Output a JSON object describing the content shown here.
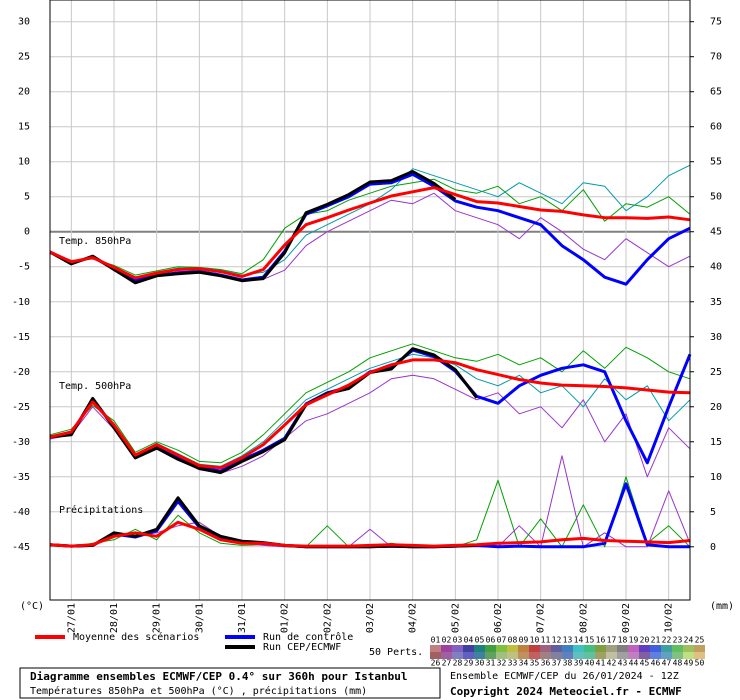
{
  "chart_data": {
    "type": "line",
    "title": "Diagramme ensembles ECMWF/CEP 0.4° sur 360h pour Istanbul",
    "subtitle": "Températures 850hPa et 500hPa (°C) , précipitations (mm)",
    "run_info": "Ensemble ECMWF/CEP du 26/01/2024 - 12Z",
    "copyright": "Copyright 2024 Meteociel.fr - ECMWF",
    "y_label": "(°C)",
    "y2_label": "(mm)",
    "annotations": [
      "Temp. 850hPa",
      "Temp. 500hPa",
      "Précipitations"
    ],
    "perturbations_label": "50 Perts.",
    "perturbation_keys": [
      "01",
      "02",
      "03",
      "04",
      "05",
      "06",
      "07",
      "08",
      "09",
      "10",
      "11",
      "12",
      "13",
      "14",
      "15",
      "16",
      "17",
      "18",
      "19",
      "20",
      "21",
      "22",
      "23",
      "24",
      "25",
      "26",
      "27",
      "28",
      "29",
      "30",
      "31",
      "32",
      "33",
      "34",
      "35",
      "36",
      "37",
      "38",
      "39",
      "40",
      "41",
      "42",
      "43",
      "44",
      "45",
      "46",
      "47",
      "48",
      "49",
      "50"
    ],
    "perturbation_colors": [
      "#c08080",
      "#a040a0",
      "#8060c0",
      "#4040a0",
      "#208080",
      "#40a040",
      "#80c040",
      "#c0c040",
      "#c08040",
      "#c04040",
      "#a06080",
      "#6060a0",
      "#4080c0",
      "#40c0c0",
      "#40c080",
      "#80a040",
      "#a0a080",
      "#808080",
      "#c060c0",
      "#6040c0",
      "#4060e0",
      "#40a0a0",
      "#60c060",
      "#a0c060",
      "#c0a060",
      "#a06060",
      "#a060a0",
      "#8080c0",
      "#6060c0",
      "#4080a0",
      "#60a060",
      "#a0c080",
      "#c0c080",
      "#c09060",
      "#c06060",
      "#a08080",
      "#8080a0",
      "#6080c0",
      "#60c0c0",
      "#60c0a0",
      "#a0a060",
      "#c0c0a0",
      "#a0a0a0",
      "#c080c0",
      "#8060a0",
      "#6080e0",
      "#60a0c0",
      "#80c080",
      "#c0e080",
      "#e0c080"
    ],
    "x": [
      0,
      12,
      24,
      36,
      48,
      60,
      72,
      84,
      96,
      108,
      120,
      132,
      144,
      156,
      168,
      180,
      192,
      204,
      216,
      228,
      240,
      252,
      264,
      276,
      288,
      300,
      312,
      324,
      336,
      348,
      360
    ],
    "xlim": [
      0,
      360
    ],
    "xticks": [
      {
        "value": 12,
        "label": "27/01"
      },
      {
        "value": 36,
        "label": "28/01"
      },
      {
        "value": 60,
        "label": "29/01"
      },
      {
        "value": 84,
        "label": "30/01"
      },
      {
        "value": 108,
        "label": "31/01"
      },
      {
        "value": 132,
        "label": "01/02"
      },
      {
        "value": 156,
        "label": "02/02"
      },
      {
        "value": 180,
        "label": "03/02"
      },
      {
        "value": 204,
        "label": "04/02"
      },
      {
        "value": 228,
        "label": "05/02"
      },
      {
        "value": 252,
        "label": "06/02"
      },
      {
        "value": 276,
        "label": "07/02"
      },
      {
        "value": 300,
        "label": "08/02"
      },
      {
        "value": 324,
        "label": "09/02"
      },
      {
        "value": 348,
        "label": "10/02"
      }
    ],
    "ylim": [
      -52.6,
      33.1
    ],
    "yticks": [
      30,
      25,
      20,
      15,
      10,
      5,
      0,
      -5,
      -10,
      -15,
      -20,
      -25,
      -30,
      -35,
      -40,
      -45
    ],
    "y2lim": [
      -7.6,
      78.1
    ],
    "y2ticks": [
      75,
      70,
      65,
      60,
      55,
      50,
      45,
      40,
      35,
      30,
      25,
      20,
      15,
      10,
      5,
      0
    ],
    "grid": true,
    "series": [
      {
        "color": "#00a000",
        "values": [
          -3.0,
          -4.1,
          -3.9,
          -4.8,
          -6.2,
          -5.6,
          -5.0,
          -5.1,
          -5.4,
          -6.0,
          -4.0,
          0.5,
          2.5,
          3.0,
          4.5,
          5.5,
          6.5,
          7.0,
          7.5,
          6.0,
          5.5,
          6.5,
          4.0,
          5.0,
          3.0,
          6.0,
          1.5,
          4.0,
          3.5,
          5.0,
          2.5
        ]
      },
      {
        "color": "#9933cc",
        "values": [
          -2.8,
          -4.5,
          -3.4,
          -5.6,
          -7.0,
          -6.4,
          -5.7,
          -5.6,
          -6.1,
          -6.9,
          -6.8,
          -5.5,
          -2.0,
          0.0,
          1.5,
          3.0,
          4.5,
          4.0,
          5.5,
          3.0,
          2.0,
          1.0,
          -1.0,
          2.0,
          0.0,
          -2.5,
          -4.0,
          -1.0,
          -3.0,
          -5.0,
          -3.5
        ]
      },
      {
        "color": "#0099aa",
        "values": [
          -3.1,
          -4.2,
          -3.8,
          -5.0,
          -6.5,
          -5.8,
          -5.2,
          -5.2,
          -5.5,
          -6.2,
          -5.8,
          -4.0,
          -0.5,
          1.0,
          2.5,
          4.0,
          6.0,
          9.0,
          8.0,
          7.0,
          6.0,
          5.0,
          7.0,
          5.5,
          4.0,
          7.0,
          6.5,
          3.0,
          5.0,
          8.0,
          9.5
        ]
      },
      {
        "color": "#00a000",
        "values": [
          -29.0,
          -28.2,
          -24.8,
          -27.0,
          -31.5,
          -30.0,
          -31.2,
          -32.8,
          -33.0,
          -31.5,
          -29.0,
          -26.0,
          -23.0,
          -21.5,
          -20.0,
          -18.0,
          -17.0,
          -16.0,
          -17.0,
          -18.0,
          -18.5,
          -17.5,
          -19.0,
          -18.0,
          -20.0,
          -17.0,
          -19.5,
          -16.5,
          -18.0,
          -20.0,
          -21.0
        ]
      },
      {
        "color": "#9933cc",
        "values": [
          -29.6,
          -29.0,
          -25.0,
          -28.2,
          -32.4,
          -31.0,
          -32.5,
          -34.0,
          -34.5,
          -33.5,
          -32.0,
          -29.5,
          -27.0,
          -26.0,
          -24.5,
          -23.0,
          -21.0,
          -20.5,
          -21.0,
          -22.5,
          -24.0,
          -23.0,
          -26.0,
          -25.0,
          -28.0,
          -24.0,
          -30.0,
          -26.0,
          -35.0,
          -28.0,
          -31.0
        ]
      },
      {
        "color": "#0099aa",
        "values": [
          -29.2,
          -28.5,
          -24.0,
          -27.5,
          -31.8,
          -30.2,
          -31.7,
          -33.2,
          -33.5,
          -32.0,
          -30.0,
          -27.0,
          -24.0,
          -22.5,
          -21.0,
          -19.5,
          -18.5,
          -17.5,
          -18.0,
          -19.0,
          -21.0,
          -22.0,
          -20.5,
          -23.0,
          -22.0,
          -25.0,
          -21.0,
          -24.0,
          -22.0,
          -27.0,
          -24.0
        ]
      },
      {
        "color": "#00a000",
        "axis": "y2",
        "values": [
          0.2,
          0.0,
          0.5,
          1.0,
          2.5,
          1.0,
          4.5,
          2.0,
          0.5,
          0.2,
          0.3,
          0.0,
          0.0,
          3.0,
          0.0,
          0.0,
          0.5,
          0.0,
          0.0,
          0.0,
          1.0,
          9.5,
          0.0,
          4.0,
          0.0,
          6.0,
          0.0,
          10.0,
          0.5,
          3.0,
          0.0
        ]
      },
      {
        "color": "#9933cc",
        "axis": "y2",
        "values": [
          0.4,
          0.2,
          0.1,
          2.0,
          1.5,
          2.0,
          3.0,
          3.5,
          1.5,
          0.5,
          0.2,
          0.0,
          0.0,
          0.0,
          0.0,
          2.5,
          0.0,
          0.0,
          0.0,
          0.0,
          0.0,
          0.0,
          3.0,
          0.0,
          13.0,
          0.0,
          2.0,
          0.0,
          0.0,
          8.0,
          0.5
        ]
      },
      {
        "name": "Run de contrôle",
        "color": "#0000ff",
        "values": [
          -2.9,
          -4.5,
          -3.6,
          -5.3,
          -7.0,
          -6.2,
          -5.9,
          -5.7,
          -6.2,
          -6.9,
          -6.5,
          -2.8,
          2.5,
          3.7,
          5.0,
          6.8,
          7.0,
          8.2,
          6.5,
          4.4,
          3.5,
          3.0,
          2.0,
          1.0,
          -2.0,
          -4.0,
          -6.5,
          -7.5,
          -4.0,
          -1.0,
          0.5
        ]
      },
      {
        "name": "Run de contrôle",
        "color": "#0000ff",
        "values": [
          -29.3,
          -28.9,
          -23.9,
          -27.9,
          -32.1,
          -30.8,
          -32.3,
          -33.6,
          -34.2,
          -32.6,
          -31.2,
          -29.5,
          -24.6,
          -23.0,
          -22.2,
          -20.0,
          -19.4,
          -16.9,
          -17.8,
          -19.9,
          -23.5,
          -24.5,
          -22.0,
          -20.5,
          -19.5,
          -19.0,
          -20.0,
          -27.0,
          -33.0,
          -25.0,
          -17.5
        ]
      },
      {
        "name": "Run de contrôle",
        "color": "#0000ff",
        "axis": "y2",
        "values": [
          0.3,
          0.1,
          0.2,
          1.8,
          1.4,
          2.3,
          6.5,
          2.8,
          1.4,
          0.7,
          0.5,
          0.2,
          0.0,
          0.0,
          0.0,
          0.0,
          0.1,
          0.0,
          0.0,
          0.1,
          0.2,
          0.0,
          0.1,
          0.0,
          0.0,
          0.0,
          0.5,
          9.0,
          0.3,
          0.0,
          0.0
        ]
      },
      {
        "name": "Run CEP/ECMWF",
        "color": "#000000",
        "values": [
          -2.9,
          -4.6,
          -3.5,
          -5.4,
          -7.3,
          -6.3,
          -6.0,
          -5.8,
          -6.3,
          -7.0,
          -6.7,
          -3.0,
          2.7,
          3.9,
          5.3,
          7.1,
          7.3,
          8.6,
          6.9,
          4.6,
          null,
          null,
          null,
          null,
          null,
          null,
          null,
          null,
          null,
          null,
          null
        ]
      },
      {
        "name": "Run CEP/ECMWF",
        "color": "#000000",
        "values": [
          -29.3,
          -29.0,
          -23.8,
          -28.0,
          -32.3,
          -30.9,
          -32.5,
          -33.8,
          -34.4,
          -32.8,
          -31.4,
          -29.7,
          -24.7,
          -23.1,
          -22.4,
          -20.1,
          -19.6,
          -16.7,
          -17.6,
          -19.7,
          -23.7,
          null,
          null,
          null,
          null,
          null,
          null,
          null,
          null,
          null,
          null
        ]
      },
      {
        "name": "Run CEP/ECMWF",
        "color": "#000000",
        "axis": "y2",
        "values": [
          0.3,
          0.1,
          0.2,
          2.0,
          1.5,
          2.5,
          7.0,
          3.0,
          1.5,
          0.8,
          0.6,
          0.2,
          0.0,
          0.0,
          0.0,
          0.0,
          0.1,
          0.0,
          0.0,
          0.1,
          0.2,
          null,
          null,
          null,
          null,
          null,
          null,
          null,
          null,
          null,
          null
        ]
      },
      {
        "name": "Moyenne des scénarios",
        "color": "#ff0000",
        "values": [
          -2.9,
          -4.3,
          -3.7,
          -5.1,
          -6.6,
          -5.9,
          -5.4,
          -5.3,
          -5.7,
          -6.4,
          -5.4,
          -1.9,
          1.0,
          2.0,
          3.1,
          4.1,
          5.1,
          5.7,
          6.3,
          5.3,
          4.3,
          4.1,
          3.6,
          3.1,
          2.9,
          2.4,
          2.0,
          2.0,
          1.9,
          2.1,
          1.7
        ]
      },
      {
        "name": "Moyenne des scénarios",
        "color": "#ff0000",
        "values": [
          -29.3,
          -28.6,
          -24.3,
          -27.6,
          -31.9,
          -30.4,
          -31.9,
          -33.4,
          -33.7,
          -32.3,
          -30.4,
          -27.6,
          -24.7,
          -23.3,
          -21.9,
          -20.1,
          -19.0,
          -18.3,
          -18.3,
          -18.7,
          -19.7,
          -20.4,
          -21.1,
          -21.6,
          -21.9,
          -22.0,
          -22.1,
          -22.3,
          -22.6,
          -22.9,
          -23.0
        ]
      },
      {
        "name": "Moyenne des scénarios",
        "color": "#ff0000",
        "axis": "y2",
        "values": [
          0.3,
          0.1,
          0.3,
          1.5,
          2.0,
          1.5,
          3.5,
          2.5,
          1.0,
          0.5,
          0.5,
          0.2,
          0.1,
          0.1,
          0.1,
          0.2,
          0.3,
          0.2,
          0.1,
          0.2,
          0.3,
          0.5,
          0.6,
          0.7,
          1.0,
          1.2,
          0.9,
          0.8,
          0.7,
          0.6,
          0.9
        ]
      }
    ]
  }
}
